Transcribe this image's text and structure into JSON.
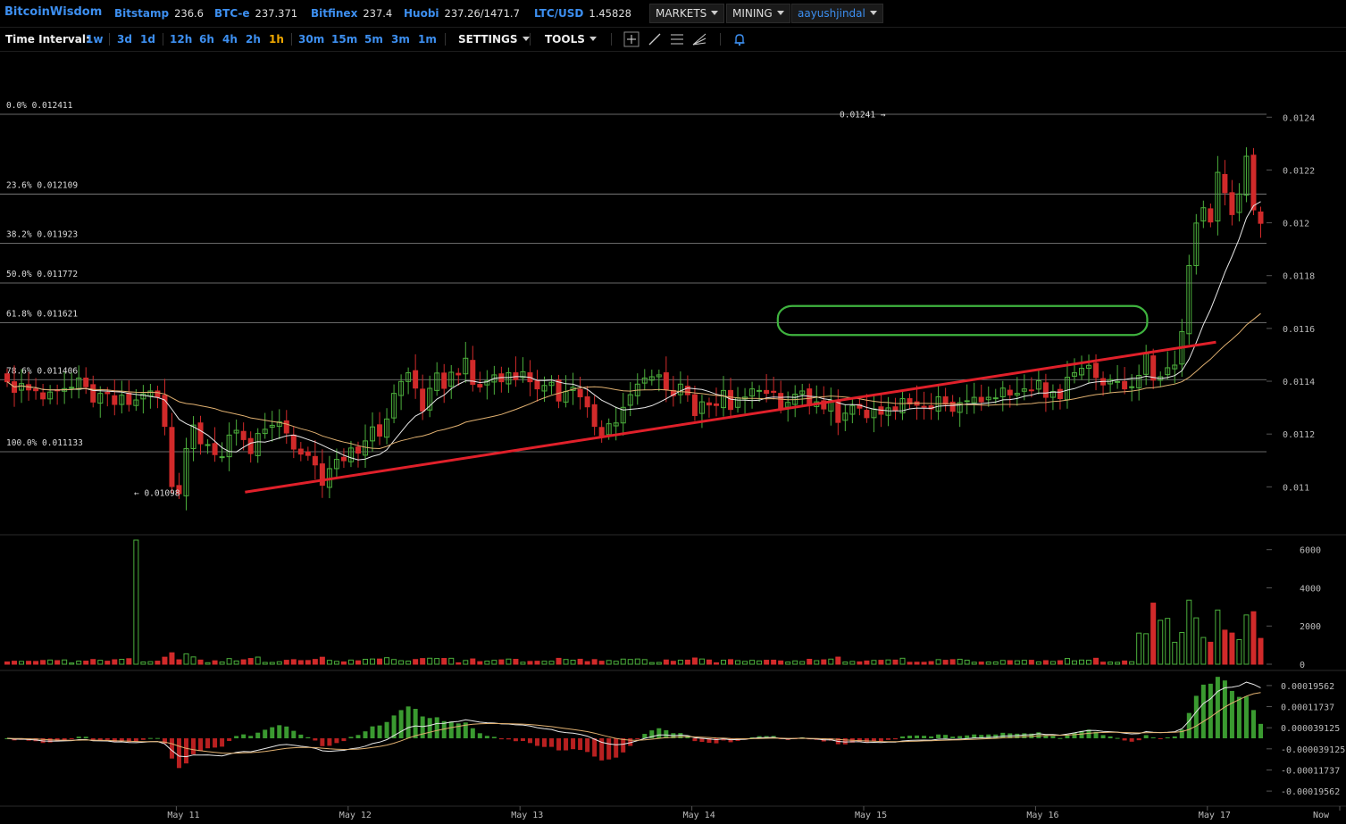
{
  "header": {
    "brand": "BitcoinWisdom",
    "exchanges": [
      {
        "name": "Bitstamp",
        "price": "236.6"
      },
      {
        "name": "BTC-e",
        "price": "237.371"
      },
      {
        "name": "Bitfinex",
        "price": "237.4"
      },
      {
        "name": "Huobi",
        "price": "237.26/1471.7"
      },
      {
        "name": "LTC/USD",
        "price": "1.45828"
      }
    ],
    "menus": {
      "markets": "MARKETS",
      "mining": "MINING",
      "user": "aayushjindal"
    }
  },
  "toolbar": {
    "time_interval_label": "Time Interval:",
    "intervals": [
      "1w",
      "3d",
      "1d",
      "12h",
      "6h",
      "4h",
      "2h",
      "1h",
      "30m",
      "15m",
      "5m",
      "3m",
      "1m"
    ],
    "active_interval": "1h",
    "settings": "SETTINGS",
    "tools": "TOOLS",
    "tool_icons": [
      "crosshair-icon",
      "line-draw-icon",
      "fib-lines-icon",
      "fan-draw-icon",
      "bell-icon"
    ]
  },
  "chart_data": {
    "type": "candlestick",
    "title": "",
    "price_axis": {
      "ticks": [
        "0.0124",
        "0.0122",
        "0.012",
        "0.0118",
        "0.0116",
        "0.0114",
        "0.0112",
        "0.011"
      ],
      "range": [
        0.01087,
        0.01251
      ]
    },
    "fibonacci": [
      {
        "label": "0.0% 0.012411",
        "value": 0.012411
      },
      {
        "label": "23.6% 0.012109",
        "value": 0.012109
      },
      {
        "label": "38.2% 0.011923",
        "value": 0.011923
      },
      {
        "label": "50.0% 0.011772",
        "value": 0.011772
      },
      {
        "label": "61.8% 0.011621",
        "value": 0.011621
      },
      {
        "label": "78.6% 0.011406",
        "value": 0.011406
      },
      {
        "label": "100.0% 0.011133",
        "value": 0.011133
      }
    ],
    "annotations": {
      "high_label": "0.01241",
      "high_value": 0.01241,
      "low_label": "0.01098",
      "low_value": 0.01098
    },
    "x_axis": {
      "labels": [
        "May 11",
        "May 12",
        "May 13",
        "May 14",
        "May 15",
        "May 16",
        "May 17",
        "Now"
      ],
      "positions_days": [
        1,
        2,
        3,
        4,
        5,
        6,
        7,
        8
      ]
    },
    "trendline": {
      "from": {
        "day": 1.4,
        "price": 0.01098
      },
      "to": {
        "day": 7.05,
        "price": 0.011548
      }
    },
    "highlight_zone": {
      "from_day": 4.5,
      "to_day": 6.65,
      "low": 0.011575,
      "high": 0.011685
    },
    "volume_axis": {
      "ticks": [
        "6000",
        "4000",
        "2000",
        "0"
      ],
      "range": [
        0,
        6500
      ]
    },
    "macd_axis": {
      "ticks": [
        "0.00019562",
        "0.00011737",
        "0.000039125",
        "-0.000039125",
        "-0.00011737",
        "-0.00019562"
      ],
      "range": [
        -0.000235,
        0.000235
      ]
    },
    "candles_hourly": {
      "start_day": 0.0,
      "close": [
        0.011398,
        0.011358,
        0.011391,
        0.011367,
        0.011364,
        0.011333,
        0.011359,
        0.011366,
        0.011372,
        0.011377,
        0.011412,
        0.011379,
        0.011321,
        0.011354,
        0.011353,
        0.011312,
        0.011347,
        0.011312,
        0.011329,
        0.011352,
        0.011363,
        0.011339,
        0.011229,
        0.011001,
        0.010974,
        0.011145,
        0.011234,
        0.011163,
        0.01116,
        0.011122,
        0.011114,
        0.011196,
        0.011214,
        0.011179,
        0.011126,
        0.011202,
        0.011218,
        0.011233,
        0.011246,
        0.011204,
        0.011143,
        0.011124,
        0.011119,
        0.011083,
        0.011006,
        0.011069,
        0.011104,
        0.011099,
        0.011147,
        0.011128,
        0.011174,
        0.011227,
        0.011192,
        0.011257,
        0.011354,
        0.011399,
        0.011432,
        0.011374,
        0.011287,
        0.011373,
        0.011431,
        0.011373,
        0.011434,
        0.011424,
        0.011487,
        0.011388,
        0.011378,
        0.011401,
        0.011424,
        0.011398,
        0.011432,
        0.011406,
        0.011436,
        0.011398,
        0.011371,
        0.011384,
        0.011396,
        0.011325,
        0.011361,
        0.011377,
        0.011341,
        0.011303,
        0.011229,
        0.011194,
        0.011239,
        0.011242,
        0.011301,
        0.011349,
        0.011389,
        0.011412,
        0.011417,
        0.011424,
        0.011369,
        0.011345,
        0.011389,
        0.011349,
        0.01127,
        0.011322,
        0.01131,
        0.011308,
        0.011365,
        0.011293,
        0.011337,
        0.01134,
        0.011371,
        0.011365,
        0.011354,
        0.011358,
        0.011298,
        0.01132,
        0.011351,
        0.011363,
        0.011308,
        0.011322,
        0.011295,
        0.011328,
        0.011244,
        0.011279,
        0.011308,
        0.011298,
        0.011262,
        0.011295,
        0.011275,
        0.011299,
        0.011288,
        0.011334,
        0.011314,
        0.011309,
        0.011303,
        0.011295,
        0.011341,
        0.011313,
        0.011286,
        0.011319,
        0.011326,
        0.011339,
        0.011322,
        0.011339,
        0.011337,
        0.011374,
        0.011348,
        0.011354,
        0.011371,
        0.011366,
        0.011402,
        0.011339,
        0.011361,
        0.011334,
        0.011415,
        0.011432,
        0.011449,
        0.01146,
        0.011414,
        0.011386,
        0.011406,
        0.011399,
        0.011371,
        0.011379,
        0.011422,
        0.011504,
        0.011404,
        0.011417,
        0.011451,
        0.011461,
        0.011588,
        0.011838,
        0.011999,
        0.012057,
        0.012003,
        0.012191,
        0.012114,
        0.012031,
        0.012109,
        0.012252,
        0.012049,
        0.011998
      ],
      "note_bull": "green = close above open, red = close below open"
    }
  },
  "footer": {
    "now_label": "Now"
  }
}
